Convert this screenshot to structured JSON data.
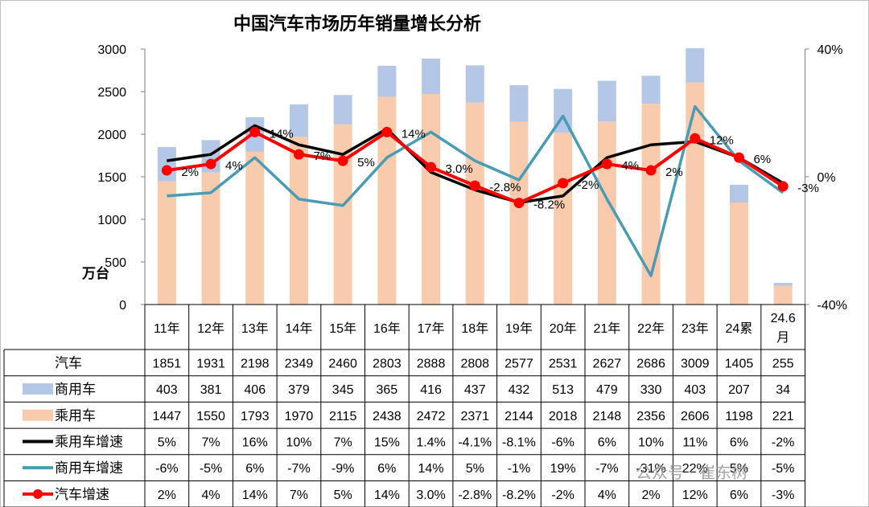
{
  "title": "中国汽车市场历年销量增长分析",
  "unit": "万台",
  "watermark": "公众号 · 崔东树",
  "chart_data": {
    "type": "bar",
    "categories": [
      "11年",
      "12年",
      "13年",
      "14年",
      "15年",
      "16年",
      "17年",
      "18年",
      "19年",
      "20年",
      "21年",
      "22年",
      "23年",
      "24累",
      "24.6月"
    ],
    "left_axis": {
      "ylim": [
        0,
        3000
      ],
      "ticks": [
        0,
        500,
        1000,
        1500,
        2000,
        2500,
        3000
      ]
    },
    "right_axis": {
      "ylim": [
        -40,
        40
      ],
      "ticks": [
        "-40%",
        "0%",
        "40%"
      ]
    },
    "table_rows": [
      {
        "legend": "汽车",
        "values": [
          "1851",
          "1931",
          "2198",
          "2349",
          "2460",
          "2803",
          "2888",
          "2808",
          "2577",
          "2531",
          "2627",
          "2686",
          "3009",
          "1405",
          "255"
        ]
      },
      {
        "legend": "商用车",
        "values": [
          "403",
          "381",
          "406",
          "379",
          "345",
          "365",
          "416",
          "437",
          "432",
          "513",
          "479",
          "330",
          "403",
          "207",
          "34"
        ]
      },
      {
        "legend": "乘用车",
        "values": [
          "1447",
          "1550",
          "1793",
          "1970",
          "2115",
          "2438",
          "2472",
          "2371",
          "2144",
          "2018",
          "2148",
          "2356",
          "2606",
          "1198",
          "221"
        ]
      },
      {
        "legend": "乘用车增速",
        "values": [
          "5%",
          "7%",
          "16%",
          "10%",
          "7%",
          "15%",
          "1.4%",
          "-4.1%",
          "-8.1%",
          "-6%",
          "6%",
          "10%",
          "11%",
          "6%",
          "-2%"
        ]
      },
      {
        "legend": "商用车增速",
        "values": [
          "-6%",
          "-5%",
          "6%",
          "-7%",
          "-9%",
          "6%",
          "14%",
          "5%",
          "-1%",
          "19%",
          "-7%",
          "-31%",
          "22%",
          "5%",
          "-5%"
        ]
      },
      {
        "legend": "汽车增速",
        "values": [
          "2%",
          "4%",
          "14%",
          "7%",
          "5%",
          "14%",
          "3.0%",
          "-2.8%",
          "-8.2%",
          "-2%",
          "4%",
          "2%",
          "12%",
          "6%",
          "-3%"
        ]
      }
    ],
    "series": [
      {
        "name": "乘用车",
        "kind": "bar",
        "color": "#f8cbad",
        "values": [
          1447,
          1550,
          1793,
          1970,
          2115,
          2438,
          2472,
          2371,
          2144,
          2018,
          2148,
          2356,
          2606,
          1198,
          221
        ]
      },
      {
        "name": "商用车",
        "kind": "bar-stacked",
        "color": "#b4c7e7",
        "values": [
          403,
          381,
          406,
          379,
          345,
          365,
          416,
          437,
          432,
          513,
          479,
          330,
          403,
          207,
          34
        ]
      },
      {
        "name": "乘用车增速",
        "kind": "line",
        "axis": "right",
        "color": "#000000",
        "values": [
          5,
          7,
          16,
          10,
          7,
          15,
          1.4,
          -4.1,
          -8.1,
          -6,
          6,
          10,
          11,
          6,
          -2
        ]
      },
      {
        "name": "商用车增速",
        "kind": "line",
        "axis": "right",
        "color": "#4a9bb5",
        "values": [
          -6,
          -5,
          6,
          -7,
          -9,
          6,
          14,
          5,
          -1,
          19,
          -7,
          -31,
          22,
          5,
          -5
        ]
      },
      {
        "name": "汽车增速",
        "kind": "line-marker",
        "axis": "right",
        "color": "#ff0000",
        "values": [
          2,
          4,
          14,
          7,
          5,
          14,
          3.0,
          -2.8,
          -8.2,
          -2,
          4,
          2,
          12,
          6,
          -3
        ],
        "labels": [
          "2%",
          "4%",
          "14%",
          "7%",
          "5%",
          "14%",
          "3.0%",
          "-2.8%",
          "-8.2%",
          "-2%",
          "4%",
          "2%",
          "12%",
          "6%",
          "-3%"
        ]
      }
    ]
  }
}
